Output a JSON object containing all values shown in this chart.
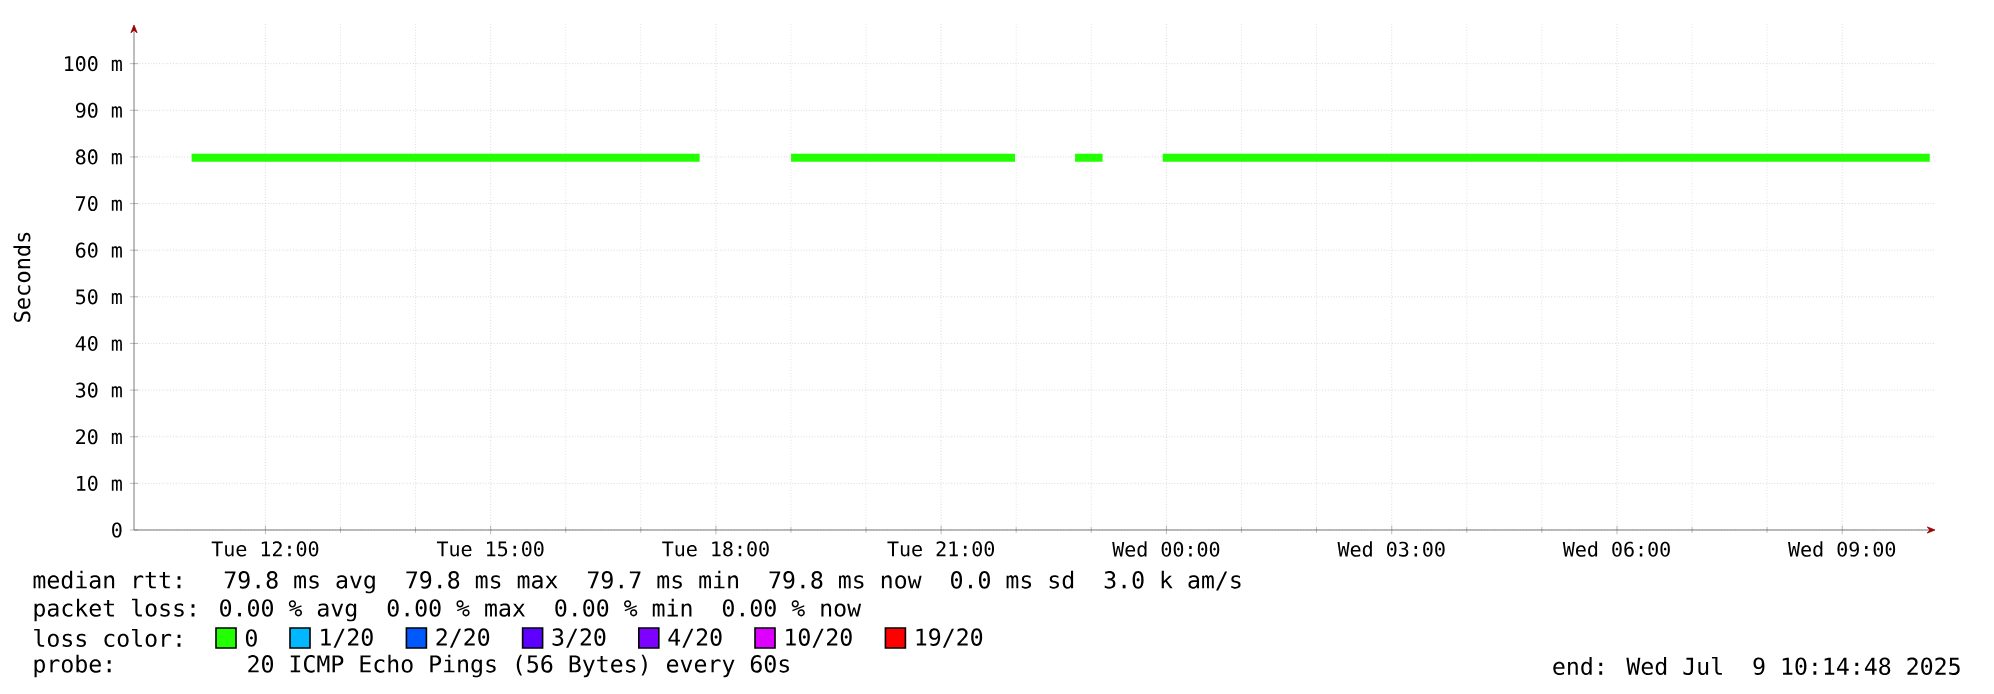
{
  "chart_data": {
    "type": "line",
    "ylabel": "Seconds",
    "legend_title": "loss color:",
    "legend": "bottom",
    "grid": true,
    "line_style": "solid",
    "marker": "none",
    "xlim": [
      "2025-07-08T10:15",
      "2025-07-09T10:15"
    ],
    "xticks": [
      {
        "value": "2025-07-08T12:00",
        "label": "Tue 12:00"
      },
      {
        "value": "2025-07-08T15:00",
        "label": "Tue 15:00"
      },
      {
        "value": "2025-07-08T18:00",
        "label": "Tue 18:00"
      },
      {
        "value": "2025-07-08T21:00",
        "label": "Tue 21:00"
      },
      {
        "value": "2025-07-09T00:00",
        "label": "Wed 00:00"
      },
      {
        "value": "2025-07-09T03:00",
        "label": "Wed 03:00"
      },
      {
        "value": "2025-07-09T06:00",
        "label": "Wed 06:00"
      },
      {
        "value": "2025-07-09T09:00",
        "label": "Wed 09:00"
      }
    ],
    "ylim": [
      0,
      108.5
    ],
    "yticks": [
      0,
      {
        "value": 10,
        "label": "10 m"
      },
      {
        "value": 20,
        "label": "20 m"
      },
      {
        "value": 30,
        "label": "30 m"
      },
      {
        "value": 40,
        "label": "40 m"
      },
      {
        "value": 50,
        "label": "50 m"
      },
      {
        "value": 60,
        "label": "60 m"
      },
      {
        "value": 70,
        "label": "70 m"
      },
      {
        "value": 80,
        "label": "80 m"
      },
      {
        "value": 90,
        "label": "90 m"
      },
      {
        "value": 100,
        "label": "100 m"
      }
    ],
    "series": [
      {
        "name": "0",
        "color": "#22ff00",
        "x": [
          "2025-07-08T11:01",
          "2025-07-08T17:47",
          "2025-07-08T18:24",
          "2025-07-08T19:00",
          "2025-07-08T21:59",
          "2025-07-08T22:24",
          "2025-07-08T22:47",
          "2025-07-08T23:09",
          "2025-07-08T23:30",
          "2025-07-08T23:57",
          "2025-07-09T10:10"
        ],
        "values": [
          79.8,
          79.8,
          null,
          79.8,
          79.8,
          null,
          79.8,
          79.8,
          null,
          79.8,
          79.8
        ]
      },
      {
        "name": "1/20",
        "color": "#00b8ff",
        "values": [
          null
        ]
      },
      {
        "name": "2/20",
        "color": "#0059ff",
        "values": [
          null
        ]
      },
      {
        "name": "3/20",
        "color": "#5e00ff",
        "values": [
          null
        ]
      },
      {
        "name": "4/20",
        "color": "#7e00ff",
        "values": [
          null
        ]
      },
      {
        "name": "10/20",
        "color": "#dd00ff",
        "values": [
          null
        ]
      },
      {
        "name": "19/20",
        "color": "#ff0000",
        "values": [
          null
        ]
      }
    ],
    "annotations": [
      "median rtt:  79.8 ms avg  79.8 ms max  79.7 ms min  79.8 ms now  0.0 ms sd  3.0 k am/s",
      "packet loss: 0.00 % avg  0.00 % max  0.00 % min  0.00 % now",
      "probe:       20 ICMP Echo Pings (56 Bytes) every 60s",
      "end: Wed Jul  9 10:14:48 2025"
    ]
  }
}
